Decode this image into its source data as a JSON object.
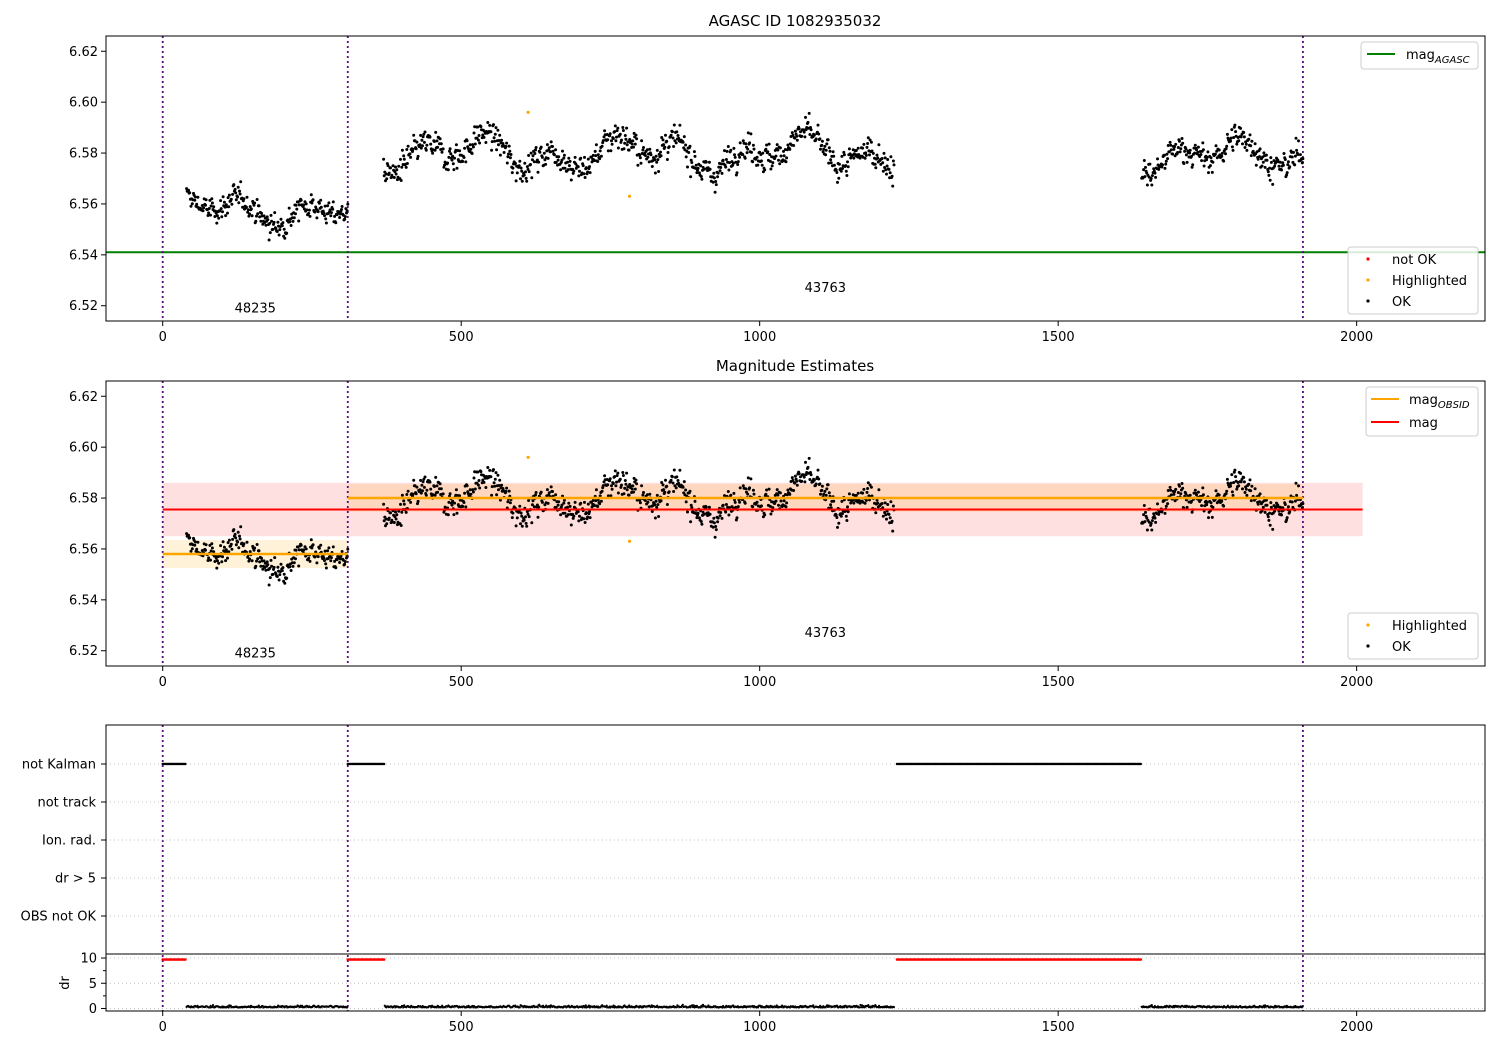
{
  "chart_data": [
    {
      "type": "scatter",
      "title": "AGASC ID 1082935032",
      "xlim": [
        -95,
        2215
      ],
      "ylim": [
        6.514,
        6.626
      ],
      "xticks": [
        0,
        500,
        1000,
        1500,
        2000
      ],
      "yticks": [
        6.52,
        6.54,
        6.56,
        6.58,
        6.6,
        6.62
      ],
      "ytick_labels": [
        "6.52",
        "6.54",
        "6.56",
        "6.58",
        "6.60",
        "6.62"
      ],
      "vlines": [
        0,
        310,
        1910
      ],
      "hline": {
        "y": 6.541,
        "label": "mag",
        "label_sub": "AGASC",
        "color": "#008000"
      },
      "segments": [
        {
          "x0": 40,
          "x1": 310,
          "mean": 6.558,
          "amp": 0.0055,
          "noise": 0.0035
        },
        {
          "x0": 370,
          "x1": 1225,
          "mean": 6.58,
          "amp": 0.0065,
          "noise": 0.004
        },
        {
          "x0": 1640,
          "x1": 1910,
          "mean": 6.579,
          "amp": 0.006,
          "noise": 0.004
        }
      ],
      "highlighted_points": [
        {
          "x": 612,
          "y": 6.596
        },
        {
          "x": 782,
          "y": 6.563
        }
      ],
      "annotations": [
        {
          "text": "48235",
          "x": 155,
          "y": 6.519
        },
        {
          "text": "43763",
          "x": 1110,
          "y": 6.527
        }
      ],
      "legend_lines": [
        {
          "label": "mag",
          "label_sub": "AGASC",
          "color": "#008000"
        }
      ],
      "legend_points": [
        {
          "label": "not OK",
          "color": "#ff0000"
        },
        {
          "label": "Highlighted",
          "color": "#ffa500"
        },
        {
          "label": "OK",
          "color": "#000000"
        }
      ]
    },
    {
      "type": "scatter",
      "title": "Magnitude Estimates",
      "xlim": [
        -95,
        2215
      ],
      "ylim": [
        6.514,
        6.626
      ],
      "xticks": [
        0,
        500,
        1000,
        1500,
        2000
      ],
      "yticks": [
        6.52,
        6.54,
        6.56,
        6.58,
        6.6,
        6.62
      ],
      "ytick_labels": [
        "6.52",
        "6.54",
        "6.56",
        "6.58",
        "6.60",
        "6.62"
      ],
      "vlines": [
        0,
        310,
        1910
      ],
      "obsid_mags": [
        {
          "x0": 0,
          "x1": 310,
          "mag": 6.558,
          "err": 0.0055
        },
        {
          "x0": 310,
          "x1": 1910,
          "mag": 6.58,
          "err": 0.0055
        }
      ],
      "overall_mag": {
        "x0": 0,
        "x1": 2010,
        "mag": 6.5755,
        "err": 0.0105
      },
      "annotations": [
        {
          "text": "48235",
          "x": 155,
          "y": 6.519
        },
        {
          "text": "43763",
          "x": 1110,
          "y": 6.527
        }
      ],
      "legend_lines": [
        {
          "label": "mag",
          "label_sub": "OBSID",
          "color": "#ffa500"
        },
        {
          "label": "mag",
          "label_sub": "",
          "color": "#ff0000"
        }
      ],
      "legend_points": [
        {
          "label": "Highlighted",
          "color": "#ffa500"
        },
        {
          "label": "OK",
          "color": "#000000"
        }
      ]
    },
    {
      "type": "scatter",
      "title": "",
      "xlim": [
        -95,
        2215
      ],
      "xticks": [
        0,
        500,
        1000,
        1500,
        2000
      ],
      "flag_labels": [
        "not Kalman",
        "not track",
        "Ion. rad.",
        "dr > 5",
        "OBS not OK"
      ],
      "not_kalman_ranges": [
        [
          0,
          38
        ],
        [
          310,
          372
        ],
        [
          1230,
          1640
        ]
      ],
      "dr_ylim": [
        -0.5,
        10.8
      ],
      "dr_yticks": [
        0,
        5,
        10
      ],
      "dr_ytick_labels": [
        "0",
        "5",
        "10"
      ],
      "dr_ylabel": "dr",
      "dr_high_ranges": [
        [
          0,
          38
        ],
        [
          310,
          372
        ],
        [
          1230,
          1640
        ]
      ],
      "dr_high_value": 9.7,
      "dr_low_ranges": [
        [
          40,
          310
        ],
        [
          372,
          1225
        ],
        [
          1640,
          1910
        ]
      ],
      "dr_low_value": 0.2
    }
  ]
}
